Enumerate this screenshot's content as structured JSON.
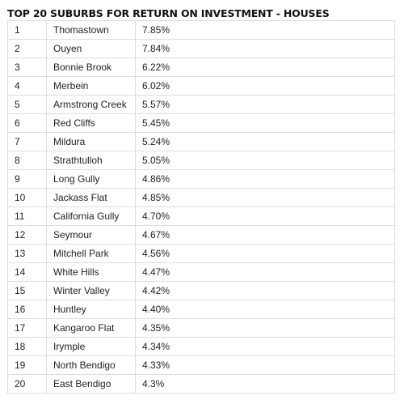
{
  "page": {
    "title": "TOP 20 SUBURBS FOR RETURN ON INVESTMENT - HOUSES"
  },
  "table": {
    "rows": [
      {
        "rank": "1",
        "suburb": "Thomastown",
        "return": "7.85%"
      },
      {
        "rank": "2",
        "suburb": "Ouyen",
        "return": "7.84%"
      },
      {
        "rank": "3",
        "suburb": "Bonnie Brook",
        "return": "6.22%"
      },
      {
        "rank": "4",
        "suburb": "Merbein",
        "return": "6.02%"
      },
      {
        "rank": "5",
        "suburb": "Armstrong Creek",
        "return": "5.57%"
      },
      {
        "rank": "6",
        "suburb": "Red Cliffs",
        "return": "5.45%"
      },
      {
        "rank": "7",
        "suburb": "Mildura",
        "return": "5.24%"
      },
      {
        "rank": "8",
        "suburb": "Strathtulloh",
        "return": "5.05%"
      },
      {
        "rank": "9",
        "suburb": "Long Gully",
        "return": "4.86%"
      },
      {
        "rank": "10",
        "suburb": "Jackass Flat",
        "return": "4.85%"
      },
      {
        "rank": "11",
        "suburb": "California Gully",
        "return": "4.70%"
      },
      {
        "rank": "12",
        "suburb": "Seymour",
        "return": "4.67%"
      },
      {
        "rank": "13",
        "suburb": "Mitchell Park",
        "return": "4.56%"
      },
      {
        "rank": "14",
        "suburb": "White Hills",
        "return": "4.47%"
      },
      {
        "rank": "15",
        "suburb": "Winter Valley",
        "return": "4.42%"
      },
      {
        "rank": "16",
        "suburb": "Huntley",
        "return": "4.40%"
      },
      {
        "rank": "17",
        "suburb": "Kangaroo Flat",
        "return": "4.35%"
      },
      {
        "rank": "18",
        "suburb": "Irymple",
        "return": "4.34%"
      },
      {
        "rank": "19",
        "suburb": "North Bendigo",
        "return": "4.33%"
      },
      {
        "rank": "20",
        "suburb": "East Bendigo",
        "return": "4.3%"
      }
    ]
  }
}
